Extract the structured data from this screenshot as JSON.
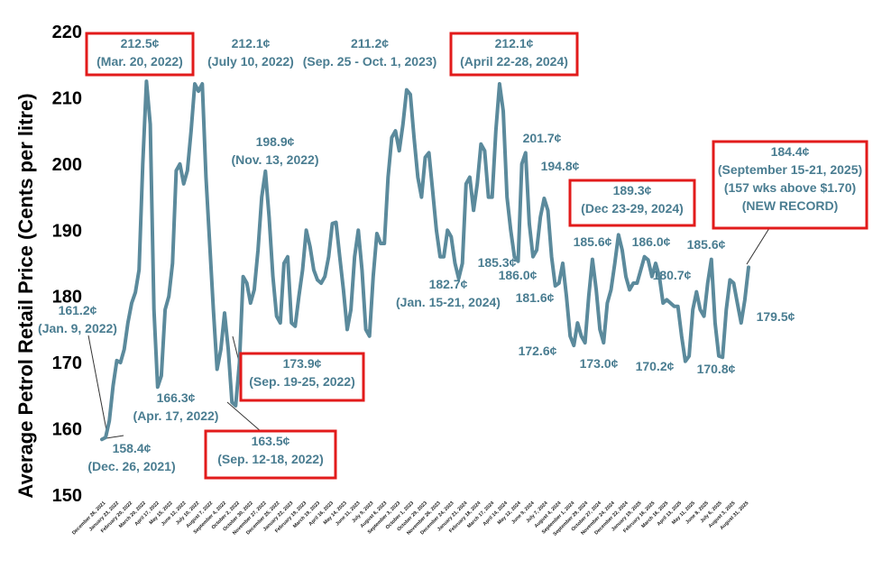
{
  "chart_data": {
    "type": "line",
    "title": "",
    "xlabel": "",
    "ylabel": "Average Petrol Retail Price (Cents per litre)",
    "ylim": [
      150,
      220
    ],
    "yticks": [
      150,
      160,
      170,
      180,
      190,
      200,
      210,
      220
    ],
    "grid": false,
    "line_color": "#5b8a9c",
    "annotation_color": "#4a7d91",
    "box_color": "#e21b1b",
    "x_tick_labels": [
      "December 26, 2021",
      "January 23, 2022",
      "February 20, 2022",
      "March 20, 2022",
      "April 17, 2022",
      "May 15, 2022",
      "June 12, 2022",
      "July 10, 2022",
      "August 7, 2022",
      "September 4, 2022",
      "October 2, 2022",
      "October 30, 2022",
      "November 27, 2022",
      "December 25, 2022",
      "January 22, 2023",
      "February 19, 2023",
      "March 19, 2023",
      "April 16, 2023",
      "May 14, 2023",
      "June 11, 2023",
      "July 9, 2023",
      "August 6, 2023",
      "September 3, 2023",
      "October 1, 2023",
      "October 29, 2023",
      "November 26, 2023",
      "December 24, 2023",
      "January 21, 2024",
      "February 18, 2024",
      "March 17, 2024",
      "April 14, 2024",
      "May 12, 2024",
      "June 9, 2024",
      "July 7, 2024",
      "August 4, 2024",
      "September 1, 2024",
      "September 29, 2024",
      "October 27, 2024",
      "November 24, 2024",
      "December 22, 2024",
      "January 19, 2025",
      "February 16, 2025",
      "March 16, 2025",
      "April 13, 2025",
      "May 11, 2025",
      "June 8, 2025",
      "July 6, 2025",
      "August 3, 2025",
      "August 31, 2025"
    ],
    "series": [
      {
        "values": [
          158.4,
          158.7,
          161.2,
          166.5,
          170.3,
          170.0,
          172.0,
          176.0,
          179.0,
          180.6,
          184.0,
          200.0,
          212.5,
          206.0,
          178.0,
          166.3,
          168.0,
          178.0,
          180.0,
          185.0,
          199.0,
          200.0,
          197.0,
          199.0,
          205.0,
          212.1,
          211.0,
          212.1,
          198.0,
          188.0,
          178.0,
          169.0,
          172.0,
          177.5,
          172.0,
          164.0,
          163.5,
          170.0,
          183.0,
          182.0,
          179.0,
          181.0,
          187.0,
          195.0,
          198.9,
          192.0,
          183.0,
          177.0,
          176.0,
          185.0,
          186.0,
          176.0,
          175.5,
          180.0,
          184.0,
          190.0,
          187.5,
          184.0,
          182.5,
          182.0,
          183.0,
          186.0,
          191.0,
          191.2,
          186.0,
          181.0,
          175.0,
          178.0,
          186.0,
          190.0,
          184.0,
          175.0,
          174.0,
          183.0,
          189.5,
          188.0,
          188.0,
          198.0,
          204.0,
          205.0,
          202.0,
          206.0,
          211.2,
          210.5,
          204.0,
          198.0,
          195.0,
          201.0,
          201.7,
          196.0,
          190.0,
          186.0,
          186.0,
          190.0,
          189.0,
          185.0,
          182.7,
          185.0,
          197.0,
          198.0,
          193.0,
          197.0,
          203.0,
          202.0,
          195.0,
          195.0,
          205.0,
          212.1,
          208.0,
          195.0,
          190.0,
          186.0,
          185.3,
          200.0,
          201.7,
          191.0,
          186.0,
          187.0,
          192.0,
          194.8,
          193.0,
          186.0,
          181.6,
          182.0,
          185.0,
          180.0,
          174.0,
          172.6,
          176.0,
          174.0,
          173.0,
          180.0,
          185.6,
          181.0,
          175.0,
          173.0,
          179.0,
          181.0,
          185.0,
          189.3,
          187.0,
          183.0,
          181.0,
          182.0,
          182.0,
          184.0,
          186.0,
          185.5,
          183.0,
          185.0,
          183.0,
          179.0,
          179.5,
          179.0,
          178.5,
          178.5,
          174.0,
          170.2,
          171.0,
          178.0,
          180.7,
          178.0,
          177.0,
          182.0,
          185.6,
          176.0,
          171.0,
          170.8,
          178.0,
          182.5,
          182.0,
          179.0,
          176.0,
          179.5,
          184.4
        ]
      }
    ],
    "annotations": [
      {
        "id": "mar2022",
        "line1": "212.5¢",
        "line2": "(Mar. 20, 2022)",
        "boxed": true
      },
      {
        "id": "jul2022",
        "line1": "212.1¢",
        "line2": "(July 10, 2022)",
        "boxed": false
      },
      {
        "id": "sep2023",
        "line1": "211.2¢",
        "line2": "(Sep. 25 - Oct. 1, 2023)",
        "boxed": false
      },
      {
        "id": "apr2024",
        "line1": "212.1¢",
        "line2": "(April 22-28, 2024)",
        "boxed": true
      },
      {
        "id": "nov2022",
        "line1": "198.9¢",
        "line2": "(Nov. 13, 2022)",
        "boxed": false
      },
      {
        "id": "jan2022",
        "line1": "161.2¢",
        "line2": "(Jan. 9, 2022)",
        "boxed": false
      },
      {
        "id": "apr2022",
        "line1": "166.3¢",
        "line2": "(Apr. 17, 2022)",
        "boxed": false
      },
      {
        "id": "dec2021",
        "line1": "158.4¢",
        "line2": "(Dec. 26, 2021)",
        "boxed": false
      },
      {
        "id": "sep19",
        "line1": "173.9¢",
        "line2": "(Sep. 19-25, 2022)",
        "boxed": true
      },
      {
        "id": "sep12",
        "line1": "163.5¢",
        "line2": "(Sep. 12-18, 2022)",
        "boxed": true
      },
      {
        "id": "jan2024",
        "line1": "182.7¢",
        "line2": "(Jan. 15-21, 2024)",
        "boxed": false
      },
      {
        "id": "dec2024",
        "line1": "189.3¢",
        "line2": "(Dec 23-29, 2024)",
        "boxed": true
      },
      {
        "id": "sep2025",
        "line1": "184.4¢",
        "line2": "(September 15-21, 2025)",
        "line3": "(157 wks above $1.70)",
        "line4": "(NEW RECORD)",
        "boxed": true
      }
    ],
    "point_labels": [
      "201.7¢",
      "194.8¢",
      "185.3¢",
      "186.0¢",
      "181.6¢",
      "185.6¢",
      "186.0¢",
      "185.6¢",
      "180.7¢",
      "172.6¢",
      "173.0¢",
      "170.2¢",
      "170.8¢",
      "179.5¢"
    ]
  }
}
